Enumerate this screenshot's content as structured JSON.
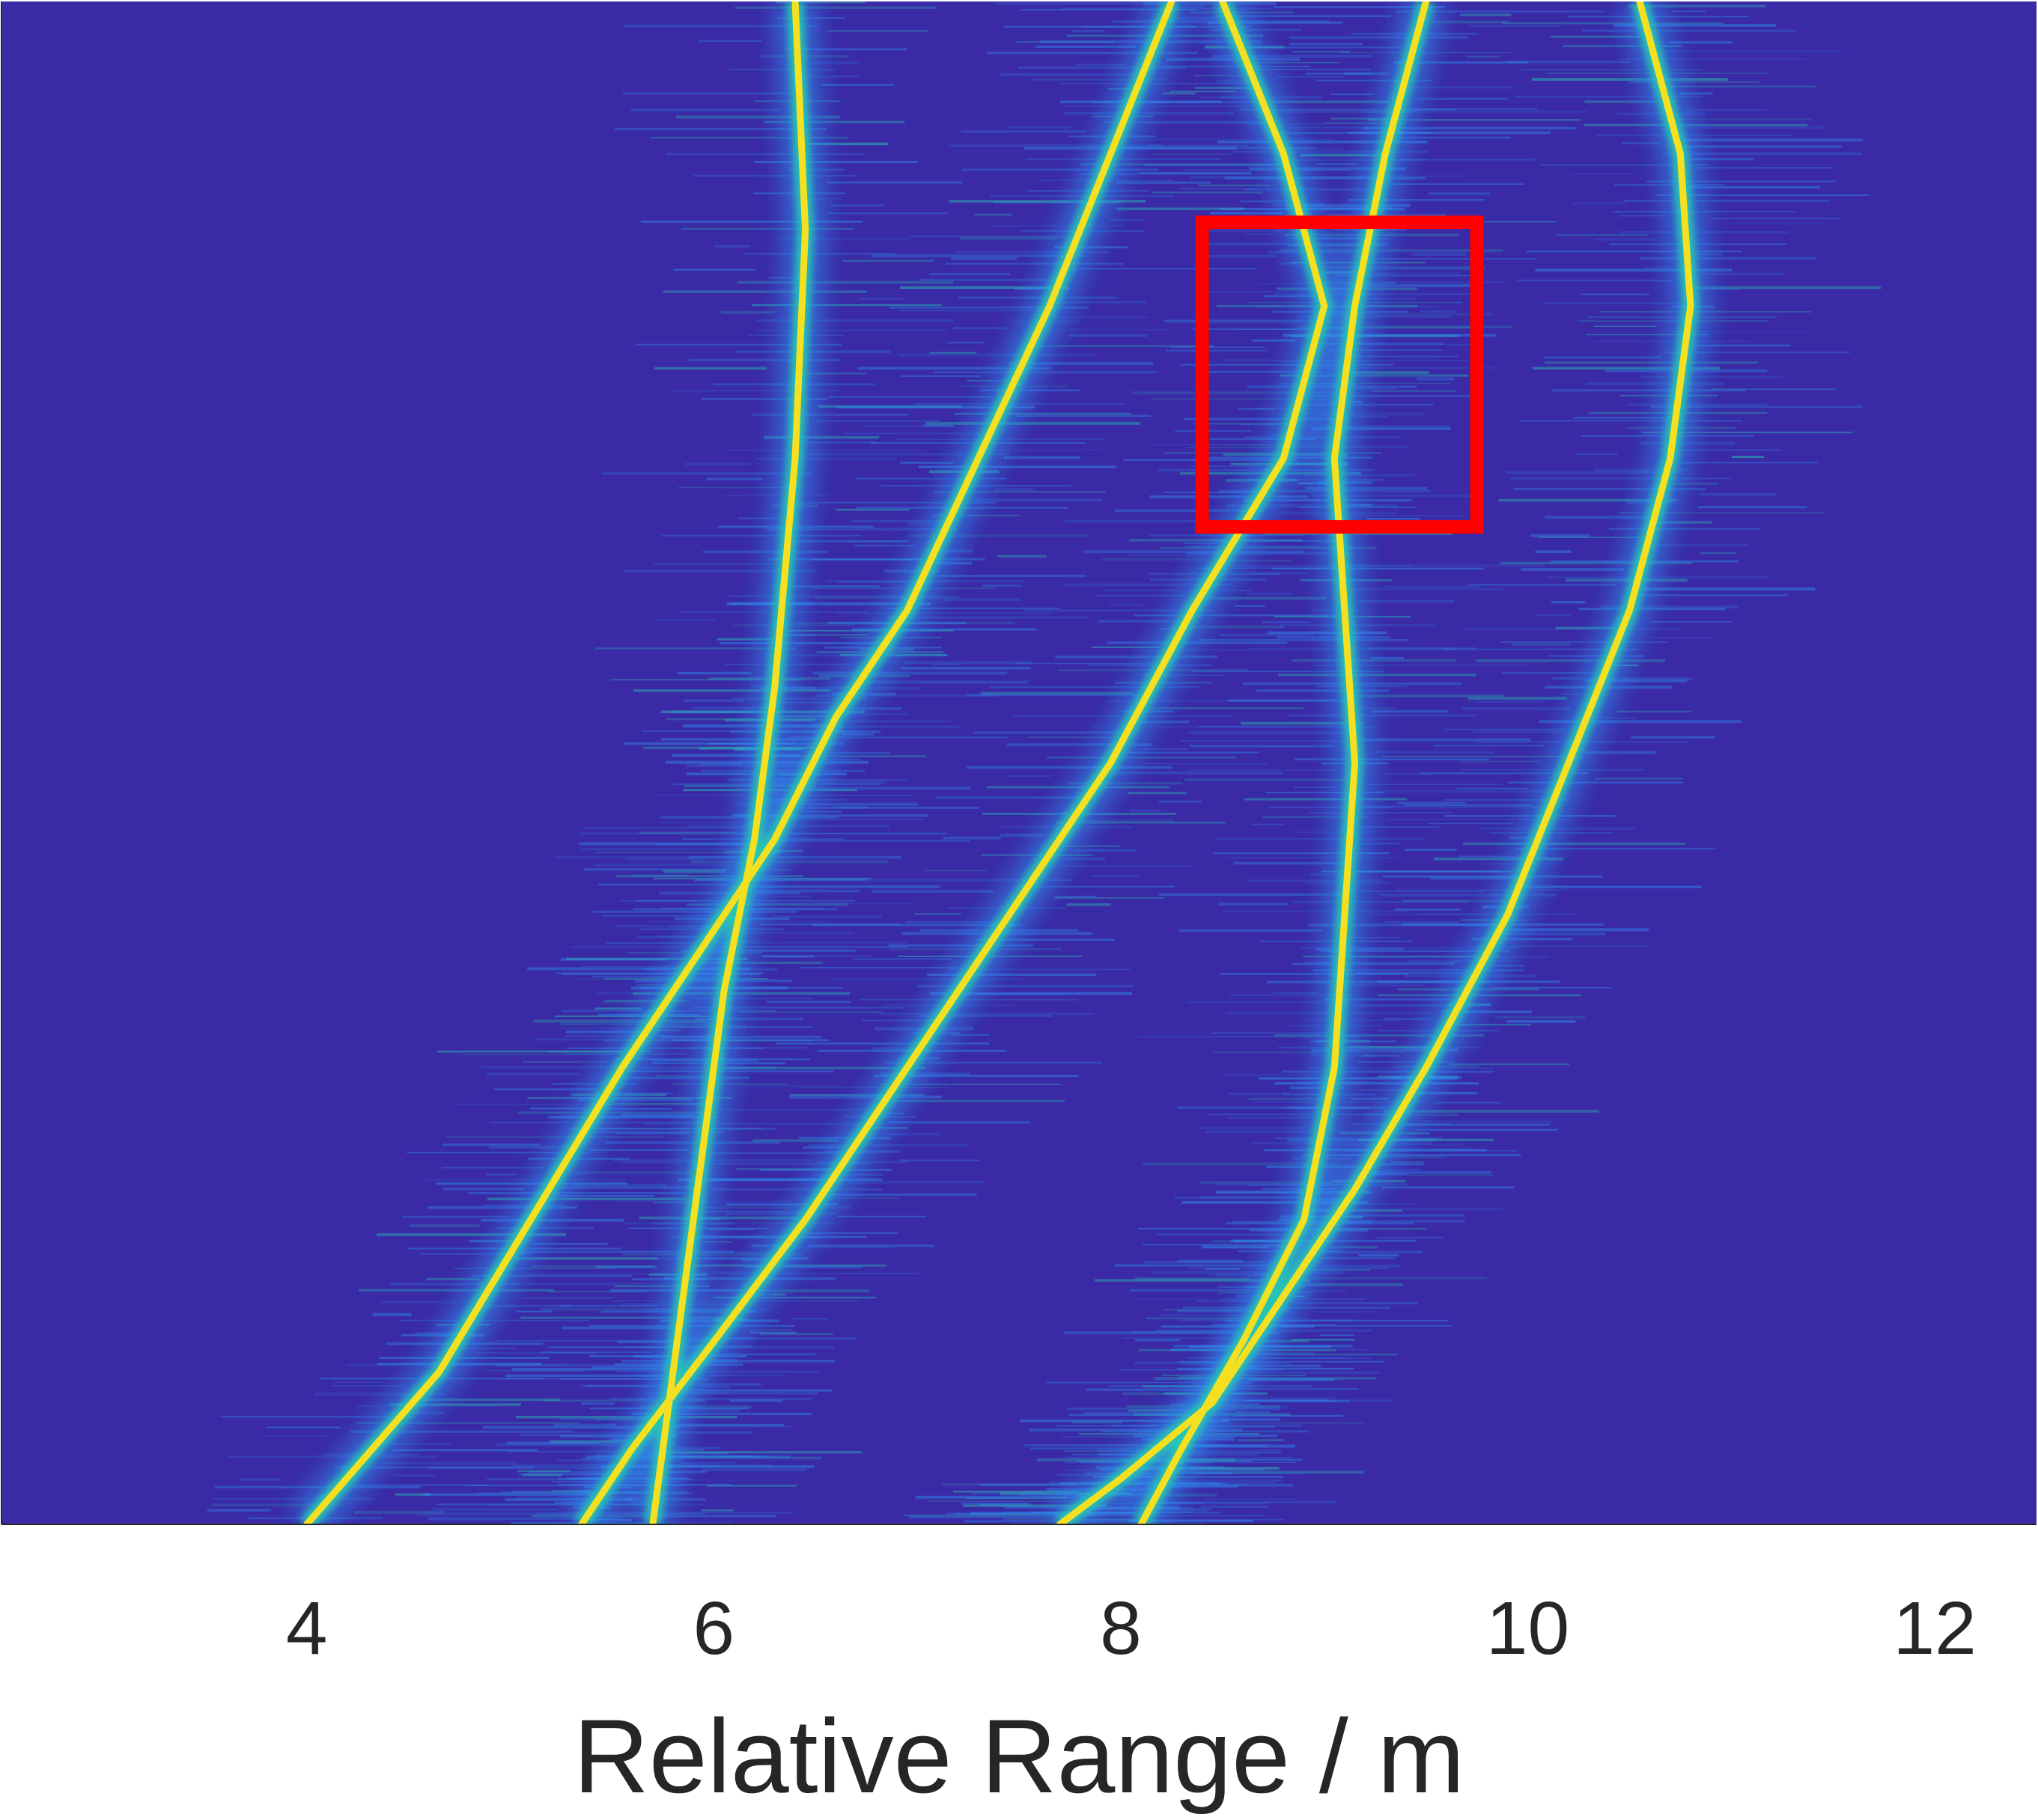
{
  "chart_data": {
    "type": "heatmap",
    "description_colormap": "parula",
    "colors": {
      "background": "#3a2aa6",
      "halo": "#2f8cf0",
      "mid": "#27c4b4",
      "peak": "#f4e020",
      "highlight_box": "#ff0000"
    },
    "xlabel": "Relative Range / m",
    "ylabel": "",
    "xlim": [
      2.5,
      12.5
    ],
    "x_ticks": [
      4,
      6,
      8,
      10,
      12
    ],
    "x_tick_labels": [
      "4",
      "6",
      "8",
      "10",
      "12"
    ],
    "ylim": [
      0,
      1
    ],
    "grid": false,
    "tracks": [
      {
        "id": "t1",
        "points": [
          [
            6.4,
            0.0
          ],
          [
            6.45,
            0.15
          ],
          [
            6.4,
            0.3
          ],
          [
            6.3,
            0.45
          ],
          [
            6.2,
            0.55
          ],
          [
            6.05,
            0.65
          ],
          [
            5.95,
            0.75
          ],
          [
            5.85,
            0.85
          ],
          [
            5.75,
            0.95
          ],
          [
            5.7,
            1.0
          ]
        ]
      },
      {
        "id": "t2",
        "points": [
          [
            8.25,
            0.0
          ],
          [
            7.95,
            0.1
          ],
          [
            7.65,
            0.2
          ],
          [
            7.3,
            0.3
          ],
          [
            6.95,
            0.4
          ],
          [
            6.6,
            0.47
          ],
          [
            6.3,
            0.55
          ],
          [
            5.9,
            0.63
          ],
          [
            5.55,
            0.7
          ],
          [
            5.1,
            0.8
          ],
          [
            4.65,
            0.9
          ],
          [
            4.0,
            1.0
          ]
        ]
      },
      {
        "id": "t3",
        "points": [
          [
            8.5,
            0.0
          ],
          [
            8.8,
            0.1
          ],
          [
            9.0,
            0.2
          ],
          [
            8.8,
            0.3
          ],
          [
            8.35,
            0.4
          ],
          [
            7.95,
            0.5
          ],
          [
            7.45,
            0.6
          ],
          [
            6.95,
            0.7
          ],
          [
            6.45,
            0.8
          ],
          [
            6.0,
            0.88
          ],
          [
            5.6,
            0.95
          ],
          [
            5.35,
            1.0
          ]
        ]
      },
      {
        "id": "t4",
        "points": [
          [
            9.5,
            0.0
          ],
          [
            9.3,
            0.1
          ],
          [
            9.15,
            0.2
          ],
          [
            9.05,
            0.3
          ],
          [
            9.1,
            0.4
          ],
          [
            9.15,
            0.5
          ],
          [
            9.1,
            0.6
          ],
          [
            9.05,
            0.7
          ],
          [
            8.9,
            0.8
          ],
          [
            8.6,
            0.88
          ],
          [
            8.3,
            0.95
          ],
          [
            8.1,
            1.0
          ]
        ]
      },
      {
        "id": "t5",
        "points": [
          [
            10.55,
            0.0
          ],
          [
            10.75,
            0.1
          ],
          [
            10.8,
            0.2
          ],
          [
            10.7,
            0.3
          ],
          [
            10.5,
            0.4
          ],
          [
            10.2,
            0.5
          ],
          [
            9.9,
            0.6
          ],
          [
            9.5,
            0.7
          ],
          [
            9.15,
            0.78
          ],
          [
            8.8,
            0.85
          ],
          [
            8.45,
            0.92
          ],
          [
            8.0,
            0.97
          ],
          [
            7.7,
            1.0
          ]
        ]
      }
    ],
    "highlight_box": {
      "x0": 8.4,
      "x1": 9.75,
      "y0": 0.145,
      "y1": 0.345
    }
  }
}
